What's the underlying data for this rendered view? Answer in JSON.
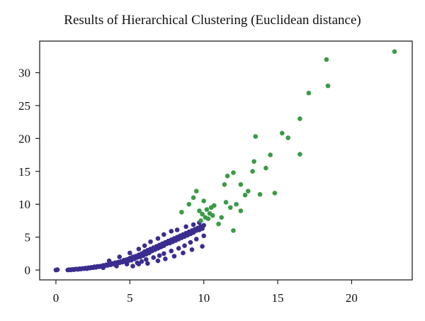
{
  "chart_data": {
    "type": "scatter",
    "title": "Results of Hierarchical Clustering (Euclidean distance)",
    "xlabel": "",
    "ylabel": "",
    "xlim": [
      -1.1,
      24.1
    ],
    "ylim": [
      -1.5,
      34.8
    ],
    "x_ticks": [
      0,
      5,
      10,
      15,
      20
    ],
    "y_ticks": [
      0,
      5,
      10,
      15,
      20,
      25,
      30
    ],
    "grid": false,
    "legend": "none",
    "series": [
      {
        "color": "#3b2d8f",
        "points": [
          [
            0.0,
            0.0
          ],
          [
            0.1,
            0.05
          ],
          [
            0.8,
            0.0
          ],
          [
            0.9,
            0.05
          ],
          [
            1.0,
            0.02
          ],
          [
            1.1,
            0.1
          ],
          [
            1.2,
            0.05
          ],
          [
            1.3,
            0.12
          ],
          [
            1.4,
            0.15
          ],
          [
            1.5,
            0.1
          ],
          [
            1.6,
            0.2
          ],
          [
            1.7,
            0.15
          ],
          [
            1.8,
            0.25
          ],
          [
            1.9,
            0.2
          ],
          [
            2.0,
            0.3
          ],
          [
            2.1,
            0.2
          ],
          [
            2.2,
            0.35
          ],
          [
            2.3,
            0.3
          ],
          [
            2.4,
            0.4
          ],
          [
            2.5,
            0.35
          ],
          [
            2.6,
            0.5
          ],
          [
            2.7,
            0.4
          ],
          [
            2.8,
            0.55
          ],
          [
            2.9,
            0.5
          ],
          [
            3.0,
            0.6
          ],
          [
            3.1,
            0.5
          ],
          [
            3.2,
            0.7
          ],
          [
            3.3,
            0.65
          ],
          [
            3.4,
            0.8
          ],
          [
            3.5,
            0.7
          ],
          [
            3.6,
            0.9
          ],
          [
            3.7,
            0.8
          ],
          [
            3.8,
            1.0
          ],
          [
            3.9,
            0.9
          ],
          [
            4.0,
            1.1
          ],
          [
            4.1,
            1.0
          ],
          [
            4.2,
            1.2
          ],
          [
            4.3,
            1.1
          ],
          [
            4.4,
            1.3
          ],
          [
            4.5,
            1.2
          ],
          [
            4.6,
            1.5
          ],
          [
            4.7,
            1.3
          ],
          [
            4.8,
            1.6
          ],
          [
            4.9,
            1.4
          ],
          [
            5.0,
            1.8
          ],
          [
            5.1,
            1.5
          ],
          [
            5.2,
            2.0
          ],
          [
            5.3,
            1.7
          ],
          [
            5.4,
            2.1
          ],
          [
            5.5,
            1.9
          ],
          [
            5.6,
            2.3
          ],
          [
            5.7,
            2.0
          ],
          [
            5.8,
            2.5
          ],
          [
            5.9,
            2.2
          ],
          [
            6.0,
            2.8
          ],
          [
            6.1,
            2.4
          ],
          [
            6.2,
            3.0
          ],
          [
            6.3,
            2.6
          ],
          [
            6.4,
            3.2
          ],
          [
            6.5,
            2.9
          ],
          [
            6.6,
            3.4
          ],
          [
            6.7,
            3.1
          ],
          [
            6.8,
            3.6
          ],
          [
            6.9,
            3.3
          ],
          [
            7.0,
            3.8
          ],
          [
            7.1,
            3.5
          ],
          [
            7.2,
            4.0
          ],
          [
            7.3,
            3.7
          ],
          [
            7.4,
            4.2
          ],
          [
            7.5,
            4.0
          ],
          [
            7.6,
            4.4
          ],
          [
            7.7,
            4.1
          ],
          [
            7.8,
            4.6
          ],
          [
            7.9,
            4.3
          ],
          [
            8.0,
            4.8
          ],
          [
            8.1,
            4.5
          ],
          [
            8.2,
            5.0
          ],
          [
            8.3,
            4.7
          ],
          [
            8.4,
            5.2
          ],
          [
            8.5,
            4.9
          ],
          [
            8.6,
            5.4
          ],
          [
            8.7,
            5.1
          ],
          [
            8.8,
            5.6
          ],
          [
            8.9,
            5.3
          ],
          [
            9.0,
            5.8
          ],
          [
            9.1,
            5.5
          ],
          [
            9.2,
            6.0
          ],
          [
            9.3,
            5.7
          ],
          [
            9.4,
            6.2
          ],
          [
            9.5,
            6.0
          ],
          [
            9.6,
            6.4
          ],
          [
            9.7,
            6.1
          ],
          [
            9.8,
            6.6
          ],
          [
            9.9,
            6.3
          ],
          [
            10.0,
            6.8
          ],
          [
            3.2,
            0.35
          ],
          [
            4.1,
            0.6
          ],
          [
            4.8,
            0.9
          ],
          [
            5.5,
            1.1
          ],
          [
            5.8,
            1.3
          ],
          [
            6.1,
            1.6
          ],
          [
            6.6,
            1.9
          ],
          [
            7.0,
            2.2
          ],
          [
            7.3,
            2.5
          ],
          [
            7.8,
            2.9
          ],
          [
            8.3,
            3.3
          ],
          [
            8.7,
            3.7
          ],
          [
            9.1,
            4.2
          ],
          [
            9.5,
            4.7
          ],
          [
            10.0,
            5.2
          ],
          [
            3.6,
            1.4
          ],
          [
            4.3,
            2.0
          ],
          [
            5.0,
            2.6
          ],
          [
            5.6,
            3.2
          ],
          [
            6.0,
            3.7
          ],
          [
            6.4,
            4.3
          ],
          [
            6.9,
            4.8
          ],
          [
            7.3,
            5.4
          ],
          [
            7.8,
            5.9
          ],
          [
            8.2,
            6.1
          ],
          [
            8.8,
            6.6
          ],
          [
            9.3,
            6.9
          ],
          [
            9.7,
            7.2
          ],
          [
            5.2,
            0.6
          ],
          [
            5.6,
            0.9
          ],
          [
            6.2,
            1.0
          ],
          [
            6.9,
            1.4
          ],
          [
            7.4,
            1.7
          ],
          [
            8.0,
            2.1
          ],
          [
            8.6,
            2.6
          ],
          [
            9.2,
            3.1
          ],
          [
            9.9,
            3.6
          ]
        ]
      },
      {
        "color": "#3a9a45",
        "points": [
          [
            8.5,
            8.8
          ],
          [
            9.0,
            10.0
          ],
          [
            9.3,
            11.0
          ],
          [
            9.5,
            12.0
          ],
          [
            9.7,
            9.0
          ],
          [
            9.8,
            7.5
          ],
          [
            9.9,
            8.5
          ],
          [
            10.0,
            10.5
          ],
          [
            10.1,
            8.0
          ],
          [
            10.2,
            9.2
          ],
          [
            10.3,
            7.8
          ],
          [
            10.4,
            8.6
          ],
          [
            10.5,
            9.5
          ],
          [
            10.6,
            8.3
          ],
          [
            10.7,
            9.8
          ],
          [
            11.0,
            7.0
          ],
          [
            11.2,
            8.0
          ],
          [
            11.4,
            13.0
          ],
          [
            11.5,
            10.3
          ],
          [
            11.6,
            14.3
          ],
          [
            11.8,
            9.5
          ],
          [
            12.0,
            6.0
          ],
          [
            12.0,
            14.8
          ],
          [
            12.2,
            10.0
          ],
          [
            12.5,
            9.0
          ],
          [
            12.5,
            13.0
          ],
          [
            12.8,
            11.4
          ],
          [
            13.0,
            12.0
          ],
          [
            13.3,
            15.0
          ],
          [
            13.4,
            16.5
          ],
          [
            13.5,
            20.3
          ],
          [
            13.8,
            11.5
          ],
          [
            14.2,
            15.5
          ],
          [
            14.5,
            17.5
          ],
          [
            14.8,
            11.7
          ],
          [
            15.3,
            20.8
          ],
          [
            15.7,
            20.1
          ],
          [
            16.5,
            17.6
          ],
          [
            16.5,
            23.0
          ],
          [
            17.1,
            26.9
          ],
          [
            18.3,
            32.0
          ],
          [
            18.4,
            28.0
          ],
          [
            22.9,
            33.2
          ]
        ]
      }
    ]
  }
}
